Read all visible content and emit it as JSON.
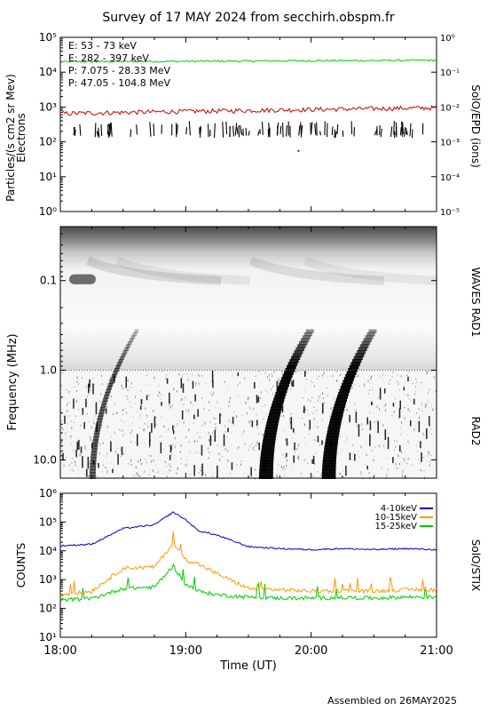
{
  "header": {
    "title": "Survey of 17 MAY 2024 from secchirh.obspm.fr",
    "footer": "Assembled on 26MAY2025"
  },
  "chart_data": [
    {
      "type": "line",
      "ylabel": "Particles/(s cm2 sr Mev)",
      "ylabel2": "Electrons",
      "right_label": "SolO/EPD (ions)",
      "scale": "log",
      "ylim": [
        1,
        100000
      ],
      "ylim_right": [
        1e-05,
        1
      ],
      "y_ticks": [
        "10⁰",
        "10¹",
        "10²",
        "10³",
        "10⁴",
        "10⁵"
      ],
      "y_ticks_right": [
        "10⁻⁵",
        "10⁻⁴",
        "10⁻³",
        "10⁻²",
        "10⁻¹",
        "10⁰"
      ],
      "grid": false,
      "legend_position": "top-left",
      "series": [
        {
          "name": "E: 53 - 73 keV",
          "color": "#00cc00",
          "approx_level": 22000
        },
        {
          "name": "E: 282 - 397 keV",
          "color": "#cc0000",
          "approx_start": 650,
          "approx_end": 950
        },
        {
          "name": "P: 7.075 - 28.33 MeV",
          "color": "#000000",
          "approx_level": 150,
          "note_style": "sparse spikes"
        },
        {
          "name": "P: 47.05 - 104.8 MeV",
          "color": "#0000cc"
        }
      ]
    },
    {
      "type": "heatmap",
      "ylabel": "Frequency (MHz)",
      "right_label_top": "WAVES RAD1",
      "right_label_bottom": "RAD2",
      "scale": "log",
      "ylim": [
        0.025,
        16
      ],
      "y_ticks": [
        "0.1",
        "1.0",
        "10.0"
      ],
      "colormap": "grayscale inverted (dark = intense)",
      "bursts_start_ut": [
        "18:15",
        "19:38",
        "20:08"
      ]
    },
    {
      "type": "line",
      "ylabel": "COUNTS",
      "right_label": "SolO/STIX",
      "scale": "log",
      "ylim": [
        10,
        1000000
      ],
      "y_ticks": [
        "10¹",
        "10²",
        "10³",
        "10⁴",
        "10⁵",
        "10⁶"
      ],
      "legend_position": "top-right",
      "x_ticks": [
        "18:00",
        "19:00",
        "20:00",
        "21:00"
      ],
      "xlabel": "Time (UT)",
      "x_hours": [
        18.0,
        18.25,
        18.5,
        18.75,
        18.9,
        19.0,
        19.1,
        19.25,
        19.5,
        19.75,
        20.0,
        20.25,
        20.5,
        20.75,
        21.0
      ],
      "series": [
        {
          "name": "4-10keV",
          "color": "#0000cc",
          "values": [
            15000,
            17000,
            60000,
            80000,
            220000,
            120000,
            50000,
            35000,
            14000,
            12000,
            11000,
            12000,
            11000,
            12000,
            11000
          ]
        },
        {
          "name": "10-15keV",
          "color": "#ff9900",
          "values": [
            300,
            400,
            2500,
            2800,
            18000,
            5000,
            3500,
            1600,
            500,
            450,
            400,
            420,
            400,
            450,
            450
          ]
        },
        {
          "name": "15-25keV",
          "color": "#00cc00",
          "values": [
            200,
            220,
            500,
            550,
            3000,
            700,
            400,
            300,
            250,
            230,
            230,
            240,
            230,
            250,
            250
          ]
        }
      ]
    }
  ]
}
